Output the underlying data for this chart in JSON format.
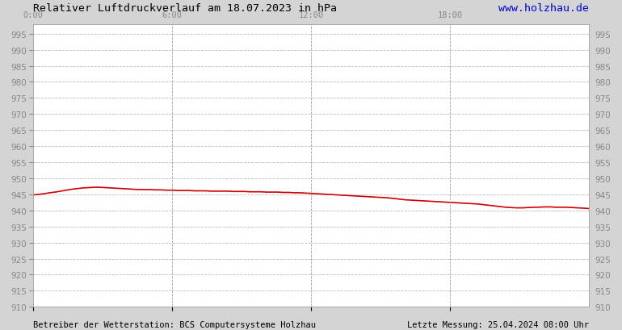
{
  "title_left": "Relativer Luftdruckverlauf am 18.07.2023 in hPa",
  "title_right": "www.holzhau.de",
  "footer_left": "Betreiber der Wetterstation: BCS Computersysteme Holzhau",
  "footer_right": "Letzte Messung: 25.04.2024 08:00 Uhr",
  "bg_color": "#d4d4d4",
  "plot_bg_color": "#ffffff",
  "line_color": "#cc0000",
  "grid_color": "#aaaaaa",
  "title_color_left": "#000000",
  "title_color_right": "#0000cc",
  "footer_color": "#000000",
  "tick_color": "#888888",
  "ylim": [
    910,
    998
  ],
  "ytick_step": 5,
  "yticks": [
    910,
    915,
    920,
    925,
    930,
    935,
    940,
    945,
    950,
    955,
    960,
    965,
    970,
    975,
    980,
    985,
    990,
    995
  ],
  "xtick_labels": [
    "0:00",
    "6:00",
    "12:00",
    "18:00"
  ],
  "xtick_positions": [
    0.0,
    0.25,
    0.5,
    0.75
  ],
  "pressure_values": [
    944.8,
    945.0,
    945.2,
    945.5,
    945.7,
    946.0,
    946.3,
    946.6,
    946.8,
    947.0,
    947.1,
    947.2,
    947.2,
    947.1,
    947.0,
    946.9,
    946.8,
    946.7,
    946.6,
    946.5,
    946.5,
    946.5,
    946.4,
    946.4,
    946.3,
    946.3,
    946.2,
    946.2,
    946.2,
    946.1,
    946.1,
    946.1,
    946.0,
    946.0,
    946.0,
    946.0,
    945.9,
    945.9,
    945.9,
    945.8,
    945.8,
    945.8,
    945.7,
    945.7,
    945.7,
    945.6,
    945.6,
    945.5,
    945.5,
    945.4,
    945.3,
    945.2,
    945.1,
    945.0,
    944.9,
    944.8,
    944.7,
    944.6,
    944.5,
    944.4,
    944.3,
    944.2,
    944.1,
    944.0,
    943.9,
    943.7,
    943.5,
    943.3,
    943.2,
    943.1,
    943.0,
    942.9,
    942.8,
    942.7,
    942.6,
    942.5,
    942.4,
    942.3,
    942.2,
    942.1,
    942.0,
    941.8,
    941.6,
    941.4,
    941.2,
    941.0,
    940.9,
    940.8,
    940.8,
    940.9,
    941.0,
    941.0,
    941.1,
    941.1,
    941.0,
    941.0,
    941.0,
    940.9,
    940.8,
    940.7,
    940.6
  ],
  "title_fontsize": 9.5,
  "tick_fontsize": 7.5,
  "footer_fontsize": 7.5
}
